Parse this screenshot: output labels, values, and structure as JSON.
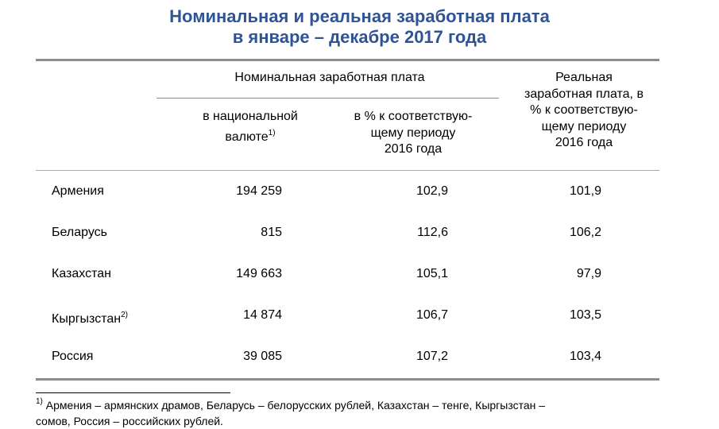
{
  "header": {
    "title_lines": [
      "Номинальная и реальная заработная плата",
      "в январе – декабре 2017 года"
    ]
  },
  "table": {
    "group_header": "Номинальная заработная плата",
    "columns": [
      {
        "lines": [
          "в национальной",
          "валюте"
        ],
        "note": "1)"
      },
      {
        "lines": [
          "в % к соответствую-",
          "щему периоду",
          "2016 года"
        ]
      },
      {
        "lines": [
          "Реальная",
          "заработная плата, в",
          "% к соответствую-",
          "щему периоду",
          "2016 года"
        ]
      }
    ],
    "rows": [
      {
        "name": "Армения",
        "cells": [
          "194 259",
          "102,9",
          "101,9"
        ]
      },
      {
        "name": "Беларусь",
        "cells": [
          "815",
          "112,6",
          "106,2"
        ]
      },
      {
        "name": "Казахстан",
        "cells": [
          "149 663",
          "105,1",
          "97,9"
        ]
      },
      {
        "name": "Кыргызстан",
        "note": "2)",
        "cells": [
          "14 874",
          "106,7",
          "103,5"
        ]
      },
      {
        "name": "Россия",
        "cells": [
          "39 085",
          "107,2",
          "103,4"
        ]
      }
    ]
  },
  "footnote": {
    "marker": "1)",
    "lines": [
      "Армения – армянских драмов, Беларусь – белорусских рублей, Казахстан – тенге, Кыргызстан –",
      "сомов, Россия – российских рублей."
    ]
  }
}
